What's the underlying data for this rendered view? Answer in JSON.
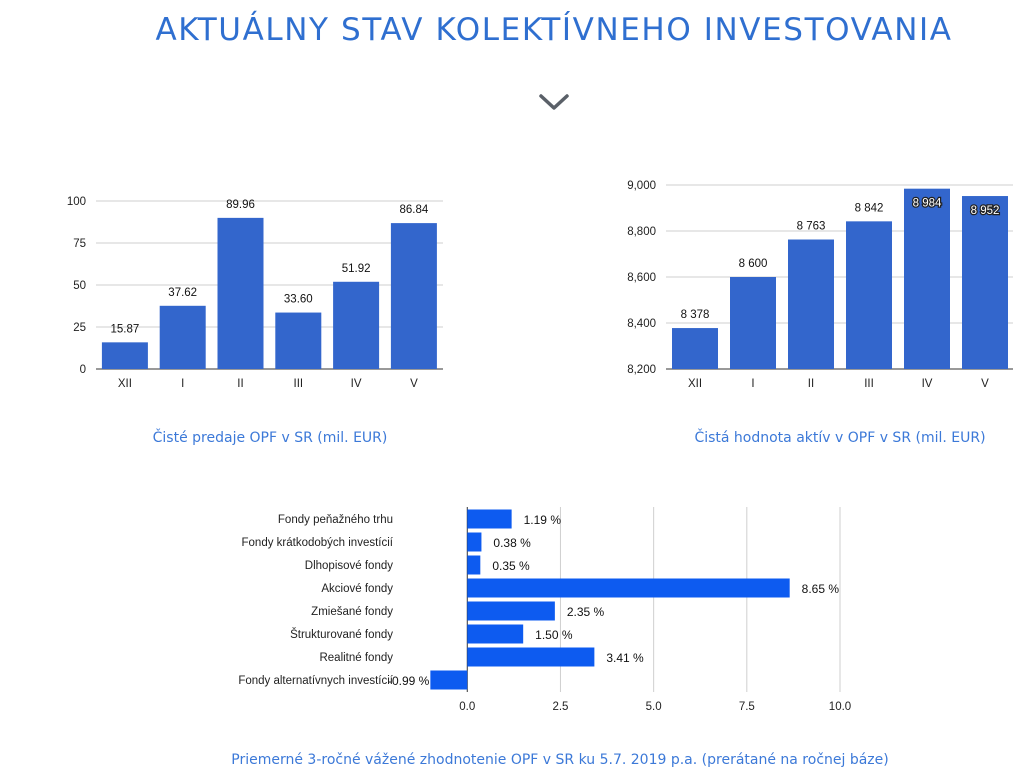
{
  "page": {
    "title": "AKTUÁLNY STAV KOLEKTÍVNEHO INVESTOVANIA",
    "chevron_icon": "chevron-down-icon",
    "accent_color": "#2f6fd0",
    "bar_color": "#3366cc",
    "hbar_color": "#0d5bf0"
  },
  "chart_data": [
    {
      "type": "bar",
      "categories": [
        "XII",
        "I",
        "II",
        "III",
        "IV",
        "V"
      ],
      "values": [
        15.87,
        37.62,
        89.96,
        33.6,
        51.92,
        86.84
      ],
      "value_labels": [
        "15.87",
        "37.62",
        "89.96",
        "33.60",
        "51.92",
        "86.84"
      ],
      "ylim": [
        0,
        100
      ],
      "yticks": [
        "0",
        "25",
        "50",
        "75",
        "100"
      ],
      "grid": true,
      "caption": "Čisté predaje OPF v SR (mil. EUR)"
    },
    {
      "type": "bar",
      "categories": [
        "XII",
        "I",
        "II",
        "III",
        "IV",
        "V"
      ],
      "values": [
        8378,
        8600,
        8763,
        8842,
        8984,
        8952
      ],
      "value_labels": [
        "8 378",
        "8 600",
        "8 763",
        "8 842",
        "8 984",
        "8 952"
      ],
      "ylim": [
        8200,
        9000
      ],
      "yticks": [
        "8,200",
        "8,400",
        "8,600",
        "8,800",
        "9,000"
      ],
      "grid": true,
      "caption": "Čistá hodnota aktív v OPF v SR (mil. EUR)"
    },
    {
      "type": "bar",
      "orientation": "horizontal",
      "categories": [
        "Fondy peňažného trhu",
        "Fondy krátkodobých investícií",
        "Dlhopisové fondy",
        "Akciové fondy",
        "Zmiešané fondy",
        "Štrukturované fondy",
        "Realitné fondy",
        "Fondy alternatívnych investícií"
      ],
      "values": [
        1.19,
        0.38,
        0.35,
        8.65,
        2.35,
        1.5,
        3.41,
        -0.99
      ],
      "value_labels": [
        "1.19 %",
        "0.38 %",
        "0.35 %",
        "8.65 %",
        "2.35 %",
        "1.50 %",
        "3.41 %",
        "-0.99 %"
      ],
      "xlim": [
        -1,
        10
      ],
      "xticks": [
        "0.0",
        "2.5",
        "5.0",
        "7.5",
        "10.0"
      ],
      "grid": true,
      "caption": "Priemerné 3-ročné vážené zhodnotenie OPF v SR ku 5.7. 2019 p.a. (prerátané na ročnej báze)"
    }
  ]
}
